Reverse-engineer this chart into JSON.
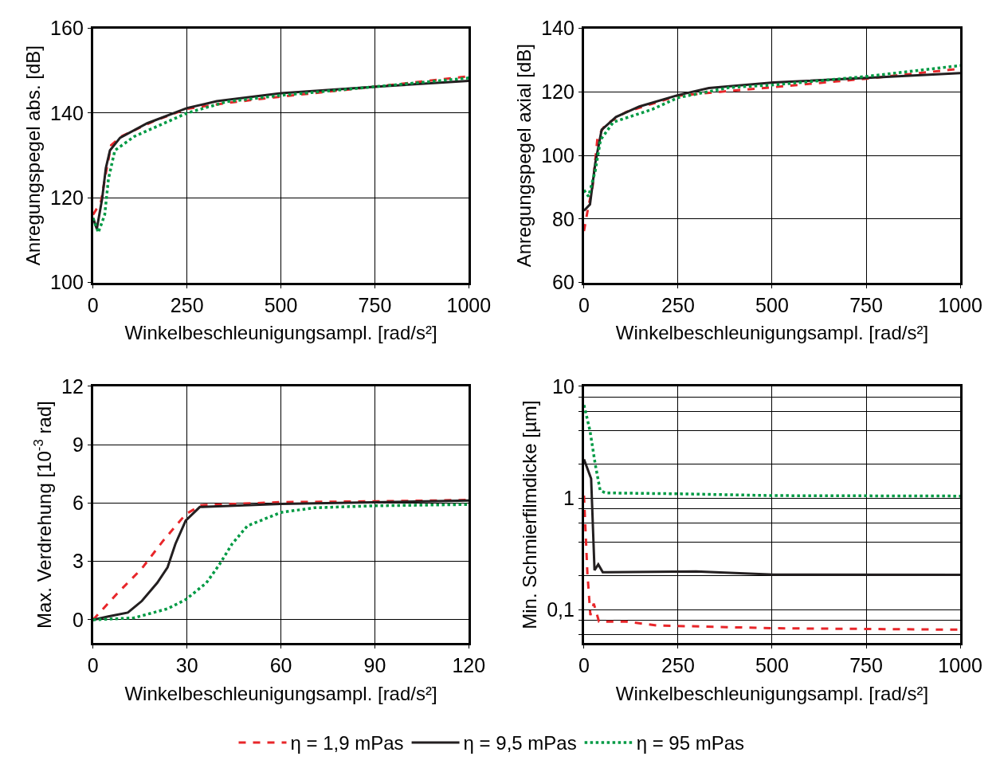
{
  "chart_data": [
    {
      "type": "line",
      "xlabel": "Winkelbeschleunigungsampl. [rad/s²]",
      "ylabel": "Anregungspegel abs. [dB]",
      "xlim": [
        0,
        1000
      ],
      "xticks": [
        0,
        250,
        500,
        750,
        1000
      ],
      "ylim": [
        100,
        160
      ],
      "yticks": [
        100,
        120,
        140,
        160
      ],
      "grid": true,
      "legend": "bottom",
      "series": [
        {
          "name": "η = 1,9 mPas",
          "color": "#e8262a",
          "line_style": "dashed",
          "x": [
            0,
            21,
            34,
            48,
            75,
            164,
            250,
            356,
            500,
            747,
            1000
          ],
          "values": [
            116,
            119.1,
            125.8,
            132.4,
            134.5,
            138.2,
            141,
            142.4,
            143.9,
            146.2,
            148.7
          ]
        },
        {
          "name": "η = 9,5 mPas",
          "color": "#231f20",
          "line_style": "solid",
          "x": [
            0,
            10,
            24,
            34,
            45,
            72,
            144,
            250,
            329,
            500,
            747,
            1000
          ],
          "values": [
            115.2,
            112.7,
            119.7,
            127,
            131.2,
            134.2,
            137.6,
            141.2,
            142.8,
            144.7,
            146.2,
            147.6
          ]
        },
        {
          "name": "η = 95 mPas",
          "color": "#009a44",
          "line_style": "dotted",
          "x": [
            0,
            14,
            31,
            41,
            58,
            110,
            250,
            356,
            500,
            747,
            1000
          ],
          "values": [
            115.2,
            111.8,
            116,
            124.5,
            131.2,
            134.5,
            140,
            142.7,
            144.2,
            146.2,
            148.3
          ]
        }
      ]
    },
    {
      "type": "line",
      "xlabel": "Winkelbeschleunigungsampl. [rad/s²]",
      "ylabel": "Anregungspegel axial [dB]",
      "xlim": [
        0,
        1000
      ],
      "xticks": [
        0,
        250,
        500,
        750,
        1000
      ],
      "ylim": [
        60,
        140
      ],
      "yticks": [
        60,
        80,
        100,
        120,
        140
      ],
      "grid": true,
      "series": [
        {
          "color": "#e8262a",
          "line_style": "dashed",
          "x": [
            0,
            9,
            23,
            36,
            57,
            112,
            250,
            387,
            504,
            752,
            1000
          ],
          "values": [
            76.2,
            82.2,
            90.3,
            105.7,
            109.7,
            113.7,
            118.8,
            120.3,
            121.5,
            124.2,
            127.3
          ]
        },
        {
          "color": "#231f20",
          "line_style": "solid",
          "x": [
            0,
            16,
            30,
            47,
            85,
            147,
            250,
            332,
            504,
            752,
            1000
          ],
          "values": [
            82.6,
            84.6,
            97.6,
            108.1,
            112.1,
            115.4,
            119,
            121.2,
            123,
            124.4,
            125.9
          ]
        },
        {
          "color": "#009a44",
          "line_style": "dotted",
          "x": [
            0,
            12,
            30,
            44,
            78,
            181,
            250,
            387,
            504,
            752,
            1000
          ],
          "values": [
            89.1,
            87.1,
            95.2,
            104.9,
            110.5,
            114.5,
            118.2,
            121.4,
            122.2,
            124.9,
            128.3
          ]
        }
      ]
    },
    {
      "type": "line",
      "xlabel": "Winkelbeschleunigungsampl. [rad/s²]",
      "ylabel": "Max. Verdrehung [10$^{-3}$ rad]",
      "xlim": [
        0,
        120
      ],
      "xticks": [
        0,
        30,
        60,
        90,
        120
      ],
      "ylim": [
        -1.2,
        12
      ],
      "yticks": [
        0,
        3,
        6,
        9,
        12
      ],
      "grid": true,
      "series": [
        {
          "color": "#e8262a",
          "line_style": "dashed",
          "x": [
            0,
            7.4,
            15.6,
            22.2,
            29.6,
            34.5,
            60,
            89.6,
            120
          ],
          "values": [
            0,
            1.3,
            2.64,
            4.03,
            5.43,
            5.89,
            6.05,
            6.09,
            6.16
          ]
        },
        {
          "color": "#231f20",
          "line_style": "solid",
          "x": [
            0,
            4.9,
            11.1,
            15.6,
            20.5,
            23.8,
            26.3,
            29.6,
            34.1,
            60,
            120
          ],
          "values": [
            0,
            0.17,
            0.37,
            0.97,
            1.9,
            2.7,
            3.9,
            5.1,
            5.8,
            5.96,
            6.13
          ]
        },
        {
          "color": "#009a44",
          "line_style": "dotted",
          "x": [
            0,
            13.1,
            23.8,
            29.6,
            36.2,
            40.3,
            44.4,
            49.3,
            60,
            70.7,
            89.6,
            120
          ],
          "values": [
            0,
            0.1,
            0.57,
            1.04,
            1.9,
            2.83,
            3.9,
            4.83,
            5.52,
            5.76,
            5.86,
            5.93
          ]
        }
      ]
    },
    {
      "type": "line",
      "xlabel": "Winkelbeschleunigungsampl. [rad/s²]",
      "ylabel": "Min. Schmierfilmdicke [µm]",
      "log": "y",
      "xlim": [
        0,
        1000
      ],
      "xticks": [
        0,
        250,
        500,
        750,
        1000
      ],
      "ylim": [
        0.05,
        10
      ],
      "yticks": [
        {
          "value": 0.06,
          "label": null
        },
        {
          "value": 0.08,
          "label": null
        },
        {
          "value": 0.1,
          "label": "0,1"
        },
        {
          "value": 0.2,
          "label": null
        },
        {
          "value": 0.4,
          "label": null
        },
        {
          "value": 0.6,
          "label": null
        },
        {
          "value": 0.8,
          "label": null
        },
        1,
        {
          "value": 2,
          "label": null
        },
        {
          "value": 4,
          "label": null
        },
        {
          "value": 6,
          "label": null
        },
        {
          "value": 8,
          "label": null
        },
        10
      ],
      "grid": true,
      "series": [
        {
          "color": "#e8262a",
          "line_style": "dashed",
          "x": [
            0,
            9,
            17,
            26,
            40,
            112,
            195,
            504,
            1000
          ],
          "values": [
            1.05,
            0.214,
            0.089,
            0.113,
            0.078,
            0.078,
            0.072,
            0.068,
            0.066
          ]
        },
        {
          "color": "#231f20",
          "line_style": "solid",
          "x": [
            0,
            19,
            28,
            38,
            50,
            298,
            504,
            1000
          ],
          "values": [
            2.22,
            1.49,
            0.225,
            0.254,
            0.216,
            0.22,
            0.206,
            0.205
          ]
        },
        {
          "color": "#009a44",
          "line_style": "dotted",
          "x": [
            0,
            16,
            30,
            43,
            57,
            250,
            504,
            1000
          ],
          "values": [
            6.8,
            4.0,
            2.0,
            1.17,
            1.11,
            1.09,
            1.05,
            1.04
          ]
        }
      ]
    }
  ]
}
